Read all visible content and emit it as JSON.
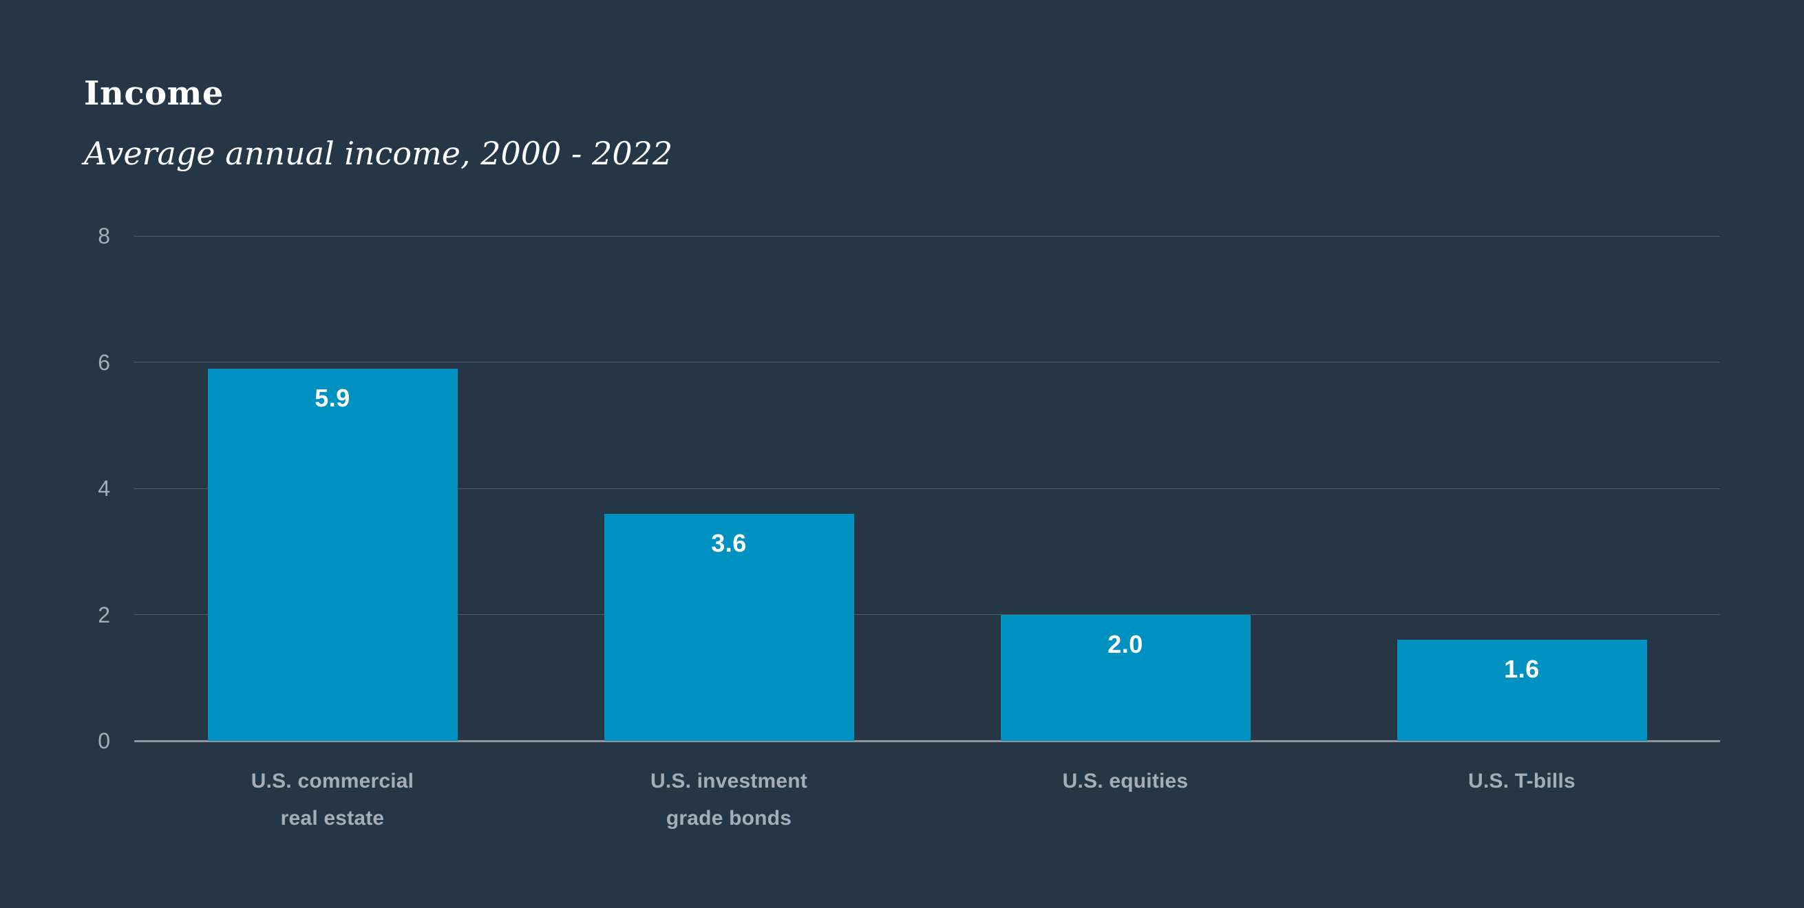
{
  "header": {
    "title": "Income",
    "subtitle": "Average annual income, 2000 - 2022"
  },
  "chart_data": {
    "type": "bar",
    "title": "Income",
    "subtitle": "Average annual income, 2000 - 2022",
    "categories": [
      "U.S. commercial real estate",
      "U.S. investment grade bonds",
      "U.S. equities",
      "U.S. T-bills"
    ],
    "category_lines": [
      [
        "U.S. commercial",
        "real estate"
      ],
      [
        "U.S. investment",
        "grade bonds"
      ],
      [
        "U.S. equities"
      ],
      [
        "U.S. T-bills"
      ]
    ],
    "values": [
      5.9,
      3.6,
      2.0,
      1.6
    ],
    "value_labels": [
      "5.9",
      "3.6",
      "2.0",
      "1.6"
    ],
    "xlabel": "",
    "ylabel": "",
    "ylim": [
      0,
      8
    ],
    "yticks": [
      0,
      2,
      4,
      6,
      8
    ],
    "grid": true,
    "legend": false,
    "colors": {
      "background": "#253746",
      "bar": "#0091c3",
      "gridline": "#4d5e6c",
      "axis_line": "#8d979f",
      "tick_label": "#a5aeb6",
      "category_label": "#a5aeb6",
      "value_label": "#ffffff",
      "title": "#ffffff"
    }
  }
}
